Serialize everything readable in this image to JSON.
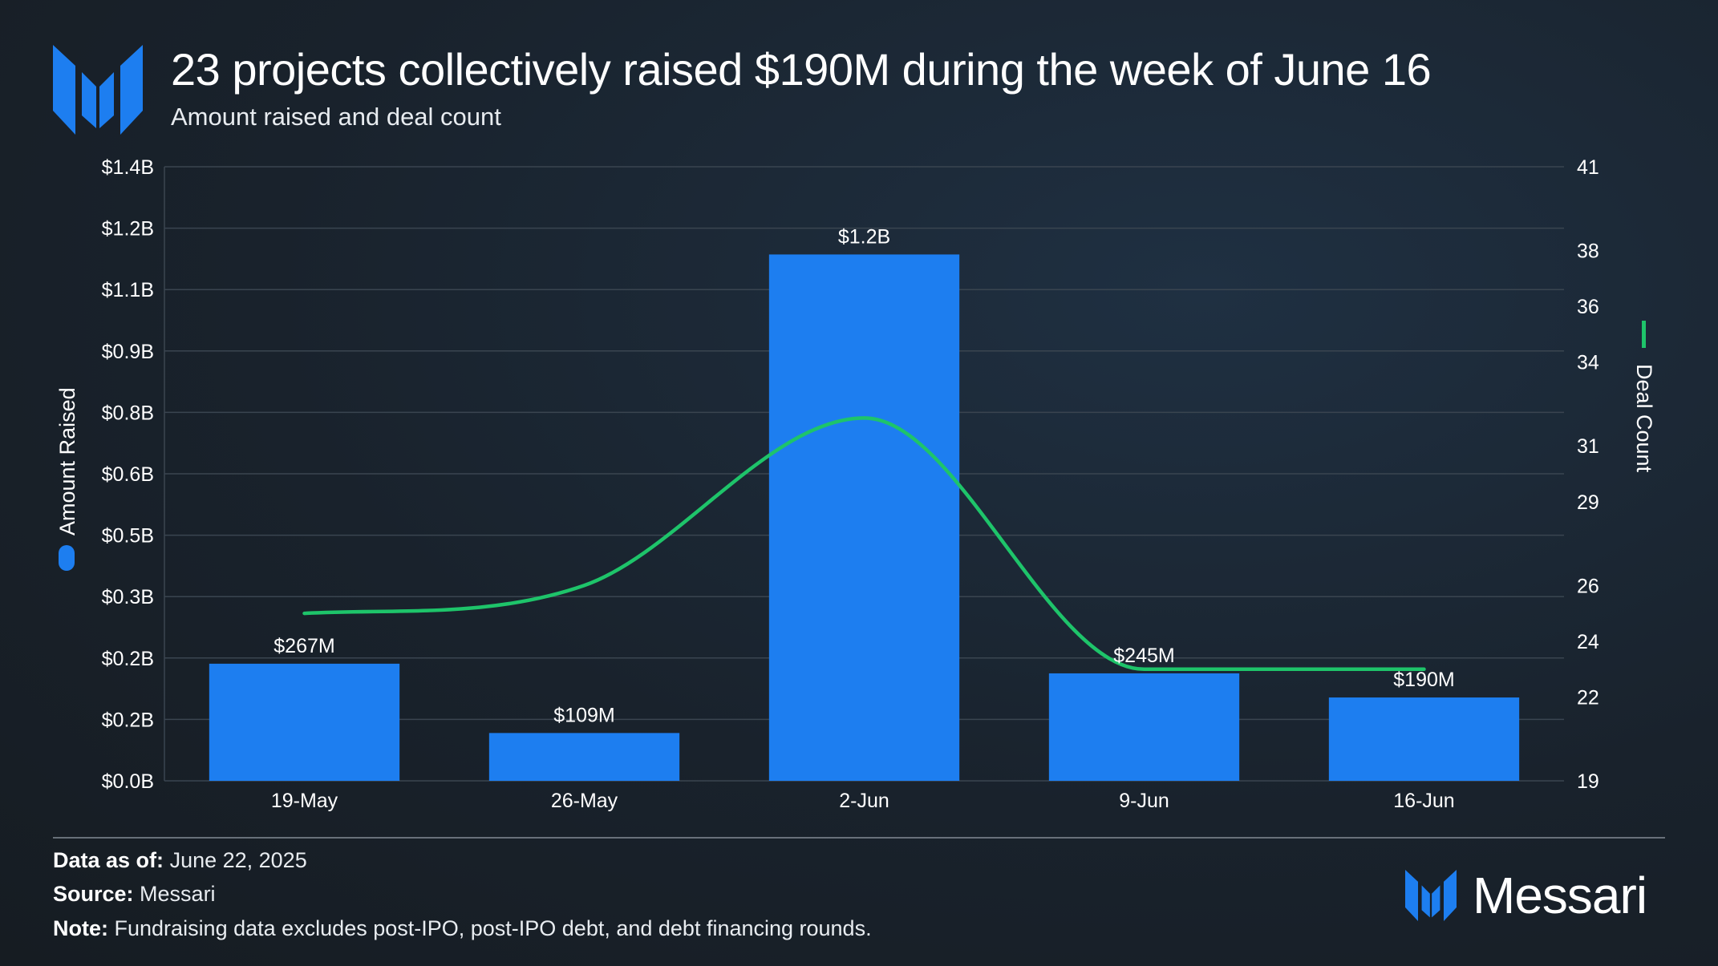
{
  "header": {
    "title": "23 projects collectively raised $190M during the week of June 16",
    "subtitle": "Amount raised and deal count"
  },
  "colors": {
    "bar": "#1d7ef0",
    "line": "#1ec46a",
    "grid": "#3a4550",
    "background": "#19222c"
  },
  "chart_data": {
    "type": "bar",
    "title": "23 projects collectively raised $190M during the week of June 16",
    "subtitle": "Amount raised and deal count",
    "categories": [
      "19-May",
      "26-May",
      "2-Jun",
      "9-Jun",
      "16-Jun"
    ],
    "series": [
      {
        "name": "Amount Raised",
        "type": "bar",
        "axis": "left",
        "values": [
          0.267,
          0.109,
          1.2,
          0.245,
          0.19
        ],
        "labels": [
          "$267M",
          "$109M",
          "$1.2B",
          "$245M",
          "$190M"
        ]
      },
      {
        "name": "Deal Count",
        "type": "line",
        "axis": "right",
        "values": [
          25,
          26,
          32,
          23,
          23
        ]
      }
    ],
    "left_axis": {
      "label": "Amount Raised",
      "ticks": [
        "$0.0B",
        "$0.2B",
        "$0.2B",
        "$0.3B",
        "$0.5B",
        "$0.6B",
        "$0.8B",
        "$0.9B",
        "$1.1B",
        "$1.2B",
        "$1.4B"
      ],
      "ylim": [
        0,
        1.4
      ]
    },
    "right_axis": {
      "label": "Deal Count",
      "ticks": [
        "19",
        "22",
        "24",
        "26",
        "29",
        "31",
        "34",
        "36",
        "38",
        "41"
      ],
      "ylim": [
        19,
        41
      ]
    },
    "grid": true
  },
  "footer": {
    "data_as_of_label": "Data as of:",
    "data_as_of": "June 22, 2025",
    "source_label": "Source:",
    "source": "Messari",
    "note_label": "Note:",
    "note": "Fundraising data excludes post-IPO, post-IPO debt, and debt financing rounds.",
    "brand": "Messari"
  }
}
